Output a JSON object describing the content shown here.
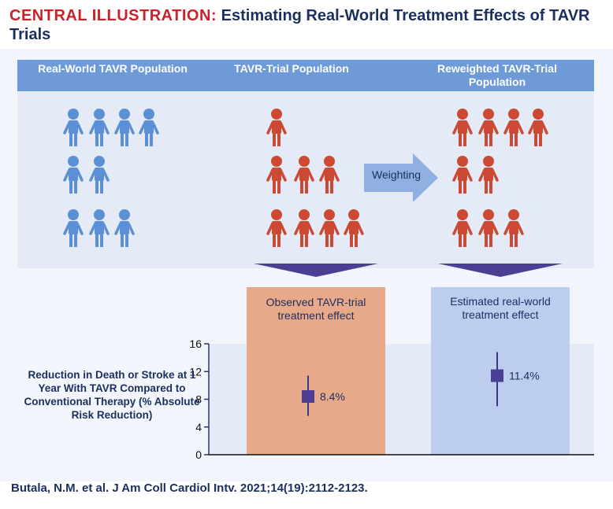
{
  "title": {
    "kicker": "CENTRAL ILLUSTRATION:",
    "text": "Estimating Real-World Treatment Effects of TAVR Trials"
  },
  "columns": [
    {
      "header": "Real-World TAVR Population",
      "color": "#5b8fd6",
      "rows": [
        4,
        2,
        3
      ]
    },
    {
      "header": "TAVR-Trial Population",
      "color": "#cc4a33",
      "rows": [
        1,
        3,
        4
      ]
    },
    {
      "header": "Reweighted TAVR-Trial Population",
      "color": "#cc4a33",
      "rows": [
        4,
        2,
        3
      ]
    }
  ],
  "arrow_label": "Weighting",
  "boxes": {
    "observed": {
      "label": "Observed TAVR-trial treatment effect",
      "color": "#e8a98a"
    },
    "estimated": {
      "label": "Estimated real-world treatment effect",
      "color": "#bccdee"
    }
  },
  "y_description": "Reduction in Death or Stroke at 1 Year With TAVR Compared to Conventional Therapy (% Absolute Risk Reduction)",
  "chart_data": {
    "type": "scatter",
    "ylim": [
      0,
      16
    ],
    "yticks": [
      0,
      4,
      8,
      12,
      16
    ],
    "points": [
      {
        "label": "8.4%",
        "value": 8.4,
        "low": 5.6,
        "high": 11.4
      },
      {
        "label": "11.4%",
        "value": 11.4,
        "low": 7.0,
        "high": 14.8
      }
    ]
  },
  "citation": "Butala, N.M. et al. J Am Coll Cardiol Intv. 2021;14(19):2112-2123."
}
